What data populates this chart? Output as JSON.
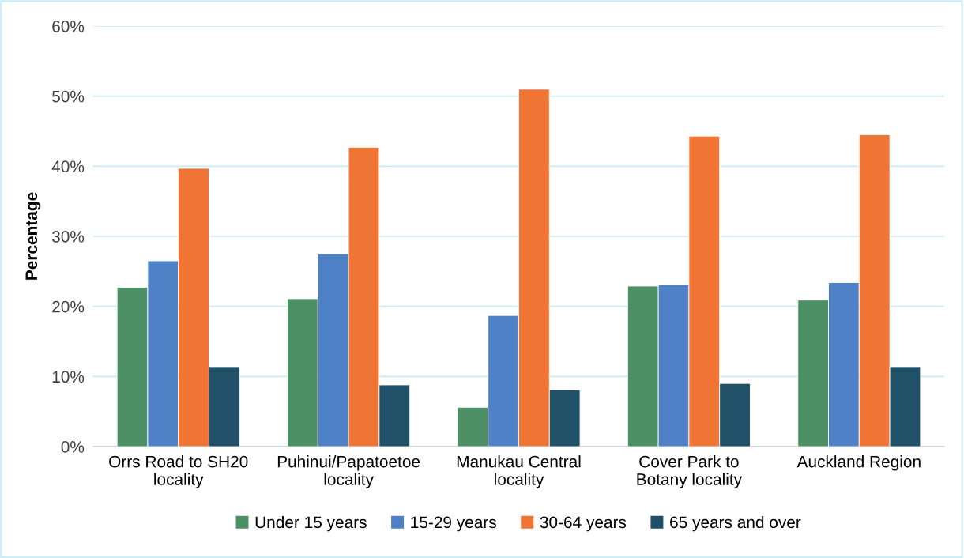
{
  "chart_data": {
    "type": "bar",
    "ylabel": "Percentage",
    "categories": [
      "Orrs Road to SH20\nlocality",
      "Puhinui/Papatoetoe\nlocality",
      "Manukau Central\nlocality",
      "Cover Park to\nBotany locality",
      "Auckland Region"
    ],
    "series": [
      {
        "name": "Under 15 years",
        "color": "#4e9066",
        "values": [
          22.7,
          21.1,
          5.6,
          22.9,
          20.9
        ]
      },
      {
        "name": "15-29 years",
        "color": "#4f81c7",
        "values": [
          26.5,
          27.5,
          18.7,
          23.1,
          23.4
        ]
      },
      {
        "name": "30-64 years",
        "color": "#f07534",
        "values": [
          39.7,
          42.7,
          51.0,
          44.3,
          44.5
        ]
      },
      {
        "name": "65 years and over",
        "color": "#215069",
        "values": [
          11.4,
          8.8,
          8.1,
          9.0,
          11.4
        ]
      }
    ],
    "ylim": [
      0,
      60
    ],
    "yticks": [
      {
        "value": 0,
        "label": "0%"
      },
      {
        "value": 10,
        "label": "10%"
      },
      {
        "value": 20,
        "label": "20%"
      },
      {
        "value": 30,
        "label": "30%"
      },
      {
        "value": 40,
        "label": "40%"
      },
      {
        "value": 50,
        "label": "50%"
      },
      {
        "value": 60,
        "label": "60%"
      }
    ],
    "grid": "y",
    "legend": "bottom"
  }
}
